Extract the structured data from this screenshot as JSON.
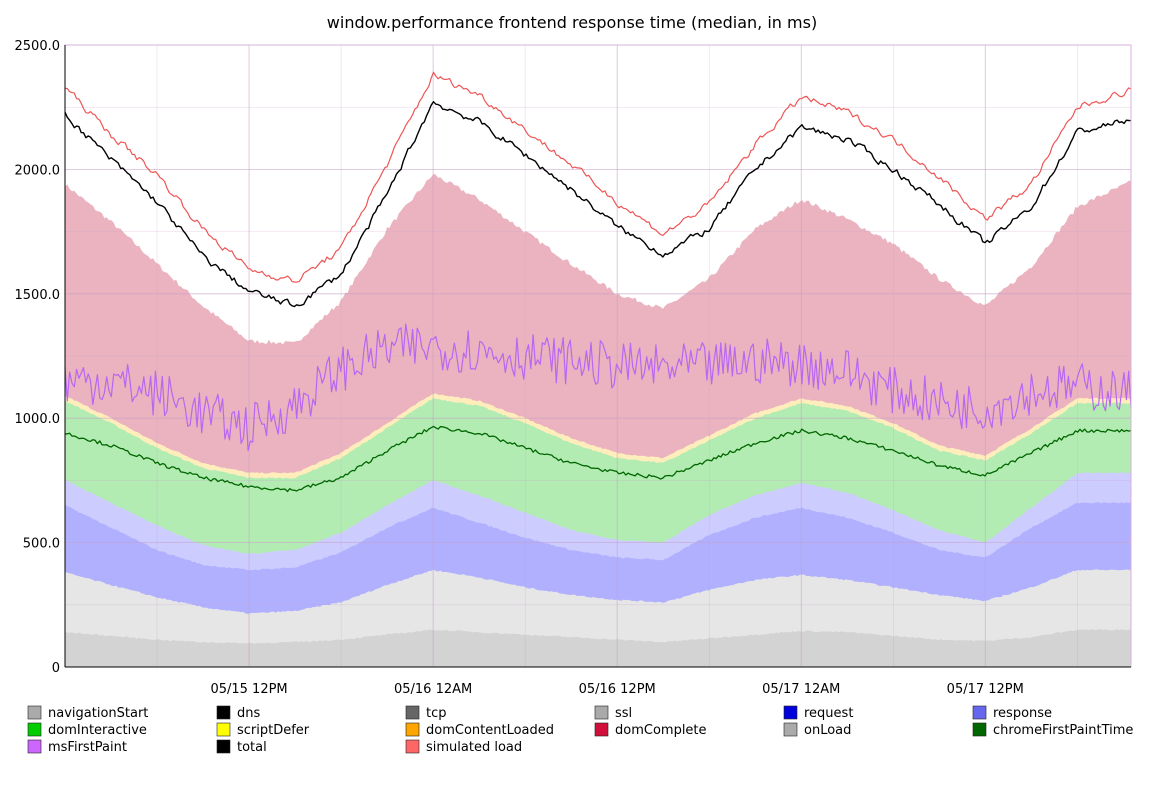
{
  "chart_data": {
    "type": "area",
    "title": "window.performance frontend response time (median, in ms)",
    "xlabel": "",
    "ylabel": "",
    "ylim": [
      0,
      2500
    ],
    "xlim_hours": [
      0,
      69.5
    ],
    "grid": true,
    "legend_position": "bottom",
    "y_ticks": [
      "0",
      "500.0",
      "1000.0",
      "1500.0",
      "2000.0",
      "2500.0"
    ],
    "x_ticks": [
      {
        "label": "05/15 12PM",
        "h": 12
      },
      {
        "label": "05/16 12AM",
        "h": 24
      },
      {
        "label": "05/16 12PM",
        "h": 36
      },
      {
        "label": "05/17 12AM",
        "h": 48
      },
      {
        "label": "05/17 12PM",
        "h": 60
      }
    ],
    "x_minor_hours": [
      6,
      18,
      30,
      42,
      54,
      66
    ],
    "x_hours": [
      0,
      3,
      6,
      9,
      12,
      15,
      18,
      21,
      24,
      27,
      30,
      33,
      36,
      39,
      42,
      45,
      48,
      51,
      54,
      57,
      60,
      63,
      66,
      69.5
    ],
    "series": [
      {
        "name": "navigationStart",
        "color": "#aaaaaa",
        "style": "none",
        "values": []
      },
      {
        "name": "dns",
        "color": "#000000",
        "style": "none",
        "values": []
      },
      {
        "name": "tcp",
        "color": "#666666",
        "style": "none",
        "values": []
      },
      {
        "name": "ssl",
        "color": "#aaaaaa",
        "style": "none",
        "values": []
      },
      {
        "name": "request",
        "color": "#0000dd",
        "style": "none",
        "values": []
      },
      {
        "name": "response",
        "color": "#6666ee",
        "style": "none",
        "values": []
      },
      {
        "name": "domInteractive",
        "color": "#00cc00",
        "style": "none",
        "values": []
      },
      {
        "name": "scriptDefer",
        "color": "#ffff00",
        "style": "none",
        "values": []
      },
      {
        "name": "domContentLoaded",
        "color": "#ffa500",
        "style": "none",
        "values": []
      },
      {
        "name": "domComplete",
        "color": "#d0103a",
        "style": "none",
        "values": []
      },
      {
        "name": "onLoad",
        "color": "#aaaaaa",
        "style": "none",
        "values": []
      },
      {
        "name": "chromeFirstPaintTime",
        "color": "#006600",
        "style": "none",
        "values": []
      },
      {
        "name": "msFirstPaint",
        "color": "#cc66ff",
        "style": "none",
        "values": []
      },
      {
        "name": "total",
        "color": "#000000",
        "style": "none",
        "values": []
      },
      {
        "name": "simulated load",
        "color": "#ff6666",
        "style": "none",
        "values": []
      }
    ],
    "layers": [
      {
        "id": "layer-1",
        "color": "#d3d3d3",
        "values": [
          140,
          125,
          110,
          100,
          95,
          100,
          110,
          130,
          150,
          140,
          130,
          120,
          110,
          100,
          115,
          130,
          145,
          140,
          125,
          110,
          105,
          120,
          150,
          150
        ]
      },
      {
        "id": "layer-2",
        "color": "#e6e6e6",
        "values": [
          380,
          330,
          280,
          240,
          215,
          225,
          260,
          330,
          390,
          360,
          320,
          290,
          270,
          260,
          310,
          350,
          370,
          350,
          320,
          290,
          265,
          320,
          390,
          390
        ]
      },
      {
        "id": "layer-3",
        "color": "#b0b0ff",
        "values": [
          650,
          560,
          470,
          410,
          390,
          400,
          460,
          560,
          640,
          580,
          520,
          470,
          440,
          430,
          530,
          600,
          640,
          600,
          540,
          470,
          440,
          560,
          660,
          660
        ]
      },
      {
        "id": "layer-4",
        "color": "#ccccff",
        "values": [
          750,
          660,
          570,
          490,
          455,
          470,
          540,
          650,
          750,
          690,
          620,
          550,
          510,
          500,
          610,
          690,
          740,
          700,
          630,
          550,
          500,
          640,
          780,
          780
        ]
      },
      {
        "id": "layer-5",
        "color": "#b3ecb3",
        "values": [
          1070,
          980,
          880,
          800,
          760,
          760,
          840,
          960,
          1080,
          1050,
          980,
          900,
          840,
          820,
          910,
          1000,
          1060,
          1030,
          960,
          870,
          830,
          940,
          1060,
          1060
        ]
      },
      {
        "id": "layer-6",
        "color": "#ffeebb",
        "values": [
          1090,
          1000,
          900,
          820,
          780,
          780,
          860,
          980,
          1100,
          1070,
          1000,
          920,
          860,
          840,
          930,
          1020,
          1080,
          1050,
          980,
          890,
          850,
          960,
          1080,
          1080
        ]
      },
      {
        "id": "layer-7",
        "color": "#eab3bf",
        "values": [
          1940,
          1790,
          1620,
          1450,
          1310,
          1300,
          1470,
          1760,
          1980,
          1880,
          1750,
          1620,
          1500,
          1440,
          1560,
          1760,
          1880,
          1800,
          1700,
          1560,
          1450,
          1610,
          1850,
          1950
        ]
      }
    ],
    "lines": {
      "chromeFirstPaintTime": [
        940,
        890,
        820,
        760,
        725,
        710,
        760,
        870,
        965,
        940,
        880,
        820,
        780,
        760,
        830,
        900,
        950,
        920,
        870,
        810,
        770,
        860,
        950,
        950
      ],
      "msFirstPaint": [
        1150,
        1150,
        1100,
        1020,
        960,
        1050,
        1200,
        1280,
        1290,
        1270,
        1250,
        1230,
        1210,
        1200,
        1210,
        1230,
        1220,
        1190,
        1110,
        1060,
        1040,
        1110,
        1130,
        1100
      ],
      "total": [
        2220,
        2040,
        1870,
        1650,
        1510,
        1450,
        1580,
        1900,
        2270,
        2190,
        2060,
        1920,
        1770,
        1660,
        1760,
        2000,
        2170,
        2120,
        2000,
        1860,
        1700,
        1850,
        2150,
        2200
      ],
      "simulated load": [
        2330,
        2140,
        1980,
        1760,
        1600,
        1550,
        1680,
        2020,
        2380,
        2300,
        2160,
        2020,
        1870,
        1740,
        1860,
        2100,
        2290,
        2230,
        2120,
        1970,
        1800,
        1940,
        2250,
        2320
      ]
    }
  }
}
